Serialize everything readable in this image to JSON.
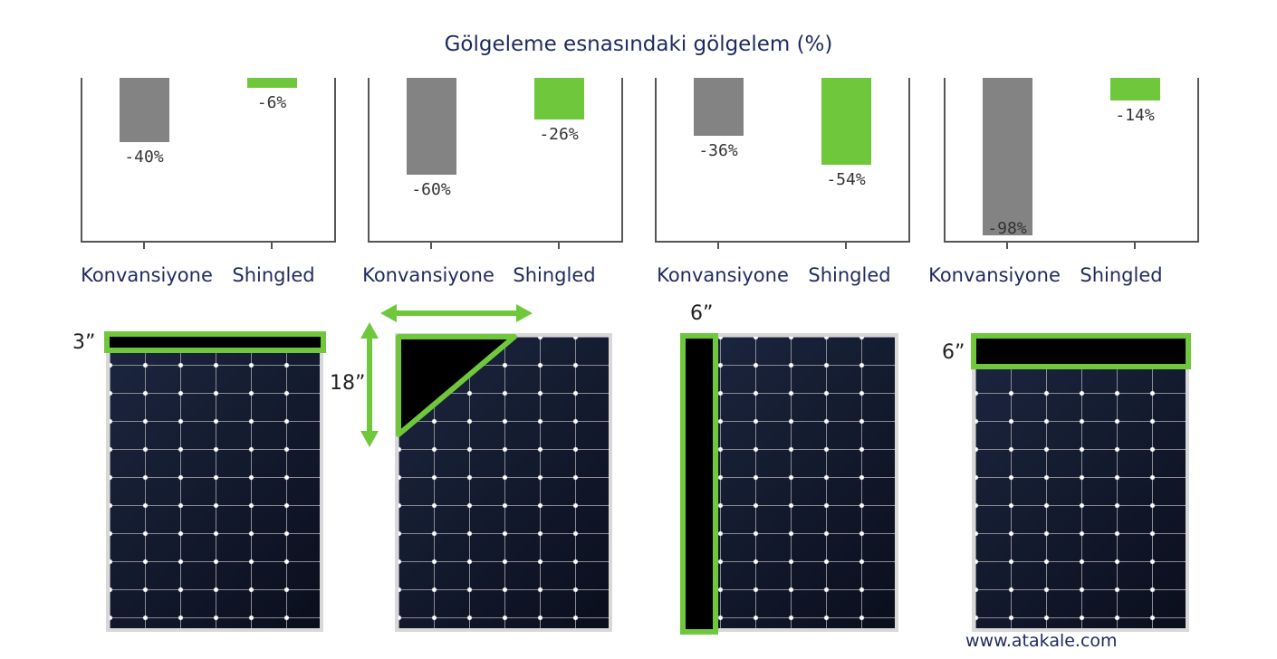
{
  "title": "Gölgeleme esnasındaki gölgelem (%)",
  "colors": {
    "conventional": "#838383",
    "shingled": "#6fc83c"
  },
  "chart_data": [
    {
      "type": "bar",
      "categories": [
        "Konvansiyone",
        "Shingled"
      ],
      "values": [
        -40,
        -6
      ],
      "labels": [
        "-40%",
        "-6%"
      ],
      "ylim": [
        -100,
        0
      ]
    },
    {
      "type": "bar",
      "categories": [
        "Konvansiyone",
        "Shingled"
      ],
      "values": [
        -60,
        -26
      ],
      "labels": [
        "-60%",
        "-26%"
      ],
      "ylim": [
        -100,
        0
      ]
    },
    {
      "type": "bar",
      "categories": [
        "Konvansiyone",
        "Shingled"
      ],
      "values": [
        -36,
        -54
      ],
      "labels": [
        "-36%",
        "-54%"
      ],
      "ylim": [
        -100,
        0
      ]
    },
    {
      "type": "bar",
      "categories": [
        "Konvansiyone",
        "Shingled"
      ],
      "values": [
        -98,
        -14
      ],
      "labels": [
        "-98%",
        "-14%"
      ],
      "ylim": [
        -100,
        0
      ]
    }
  ],
  "shading": {
    "panel1_label": "3”",
    "panel2_label": "18”",
    "panel3_label": "6”",
    "panel4_label": "6”"
  },
  "watermark": "www.atakale.com"
}
